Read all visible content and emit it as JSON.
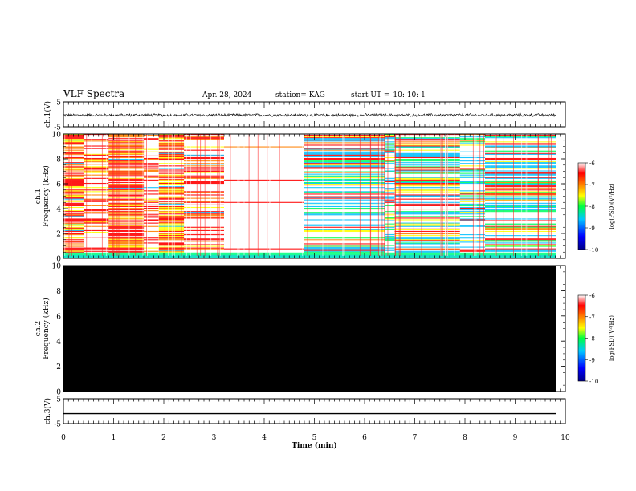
{
  "header": {
    "title": "VLF Spectra",
    "date": "Apr. 28, 2024",
    "station": "station= KAG",
    "start_label": "start UT =",
    "start_time": "10: 10: 1"
  },
  "chart_data": [
    {
      "type": "line",
      "panel": "ch1-waveform",
      "ylabel": "ch.1(V)",
      "ylim": [
        -5,
        5
      ],
      "yticks": [
        5,
        -5
      ],
      "xlim": [
        0,
        10
      ],
      "data_xrange": [
        0,
        9.82
      ],
      "series": [
        {
          "values_description_mean": -0.3,
          "amplitude": 0.5
        }
      ],
      "color": "#000000"
    },
    {
      "type": "heatmap",
      "panel": "ch1-spectrogram",
      "ylabel": "ch.1\nFrequency (kHz)",
      "ylim": [
        0,
        10
      ],
      "yticks": [
        0,
        2,
        4,
        6,
        8,
        10
      ],
      "xlim": [
        0,
        10
      ],
      "data_xrange": [
        0,
        9.82
      ],
      "colorbar": {
        "label": "log(PSD)(V²/Hz)",
        "range": [
          -10,
          -6
        ],
        "ticks": [
          -6,
          -7,
          -8,
          -9,
          -10
        ]
      },
      "segments": [
        {
          "x": [
            0.0,
            0.4
          ],
          "level": "medium-high"
        },
        {
          "x": [
            0.4,
            0.9
          ],
          "level": "low"
        },
        {
          "x": [
            0.9,
            1.6
          ],
          "level": "medium-high"
        },
        {
          "x": [
            1.6,
            1.9
          ],
          "level": "low"
        },
        {
          "x": [
            1.9,
            2.4
          ],
          "level": "medium-high"
        },
        {
          "x": [
            2.4,
            3.2
          ],
          "level": "low"
        },
        {
          "x": [
            3.2,
            4.8
          ],
          "level": "very-low"
        },
        {
          "x": [
            4.8,
            6.4
          ],
          "level": "high"
        },
        {
          "x": [
            6.4,
            6.6
          ],
          "level": "very-high"
        },
        {
          "x": [
            6.6,
            7.9
          ],
          "level": "high"
        },
        {
          "x": [
            7.9,
            8.4
          ],
          "level": "very-high"
        },
        {
          "x": [
            8.4,
            9.82
          ],
          "level": "high"
        }
      ]
    },
    {
      "type": "heatmap",
      "panel": "ch2-spectrogram",
      "ylabel": "ch.2\nFrequency (kHz)",
      "ylim": [
        0,
        10
      ],
      "yticks": [
        0,
        2,
        4,
        6,
        8,
        10
      ],
      "xlim": [
        0,
        10
      ],
      "data_xrange": [
        0,
        9.82
      ],
      "fill": "#000000",
      "colorbar": {
        "label": "log(PSD)(V²/Hz)",
        "range": [
          -10,
          -6
        ],
        "ticks": [
          -6,
          -7,
          -8,
          -9,
          -10
        ]
      }
    },
    {
      "type": "line",
      "panel": "ch3-waveform",
      "ylabel": "ch.3(V)",
      "ylim": [
        -5,
        5
      ],
      "yticks": [
        5,
        -5
      ],
      "xlim": [
        0,
        10
      ],
      "data_xrange": [
        0,
        9.82
      ],
      "series": [
        {
          "constant": -1.0
        }
      ],
      "xlabel": "Time (min)",
      "xticks": [
        0,
        1,
        2,
        3,
        4,
        5,
        6,
        7,
        8,
        9,
        10
      ]
    }
  ],
  "colors": {
    "scale": [
      "#0000ff",
      "#00aaff",
      "#00ff66",
      "#ffff00",
      "#ff8800",
      "#ff0000",
      "#ffffff"
    ]
  }
}
